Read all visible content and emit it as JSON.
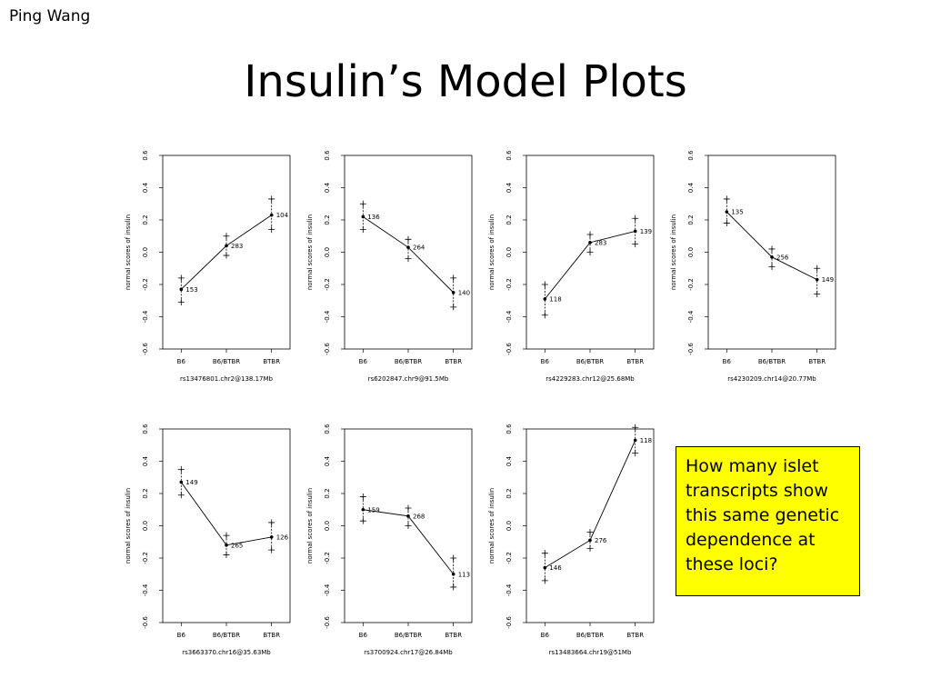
{
  "slide": {
    "author": "Ping Wang",
    "title": "Insulin’s Model Plots",
    "callout": "How many islet transcripts show this same genetic dependence at these loci?"
  },
  "chart_data": [
    {
      "type": "line",
      "categories": [
        "B6",
        "B6/BTBR",
        "BTBR"
      ],
      "values": [
        -0.23,
        0.04,
        0.23
      ],
      "upper": [
        -0.16,
        0.1,
        0.33
      ],
      "lower": [
        -0.31,
        -0.02,
        0.14
      ],
      "counts": [
        "153",
        "283",
        "104"
      ],
      "xlabel": "rs13476801.chr2@138.17Mb",
      "ylabel": "normal scores of insulin",
      "ylim": [
        -0.6,
        0.6
      ],
      "yticks": [
        "-0.6",
        "-0.4",
        "-0.2",
        "0.0",
        "0.2",
        "0.4",
        "0.6"
      ]
    },
    {
      "type": "line",
      "categories": [
        "B6",
        "B6/BTBR",
        "BTBR"
      ],
      "values": [
        0.22,
        0.03,
        -0.25
      ],
      "upper": [
        0.3,
        0.08,
        -0.16
      ],
      "lower": [
        0.14,
        -0.04,
        -0.34
      ],
      "counts": [
        "136",
        "264",
        "140"
      ],
      "xlabel": "rs6202847.chr9@91.5Mb",
      "ylabel": "normal scores of insulin",
      "ylim": [
        -0.6,
        0.6
      ],
      "yticks": [
        "-0.6",
        "-0.4",
        "-0.2",
        "0.0",
        "0.2",
        "0.4",
        "0.6"
      ]
    },
    {
      "type": "line",
      "categories": [
        "B6",
        "B6/BTBR",
        "BTBR"
      ],
      "values": [
        -0.29,
        0.06,
        0.13
      ],
      "upper": [
        -0.2,
        0.11,
        0.21
      ],
      "lower": [
        -0.39,
        0.0,
        0.05
      ],
      "counts": [
        "118",
        "283",
        "139"
      ],
      "xlabel": "rs4229283.chr12@25.68Mb",
      "ylabel": "normal scores of insulin",
      "ylim": [
        -0.6,
        0.6
      ],
      "yticks": [
        "-0.6",
        "-0.4",
        "-0.2",
        "0.0",
        "0.2",
        "0.4",
        "0.6"
      ]
    },
    {
      "type": "line",
      "categories": [
        "B6",
        "B6/BTBR",
        "BTBR"
      ],
      "values": [
        0.25,
        -0.03,
        -0.17
      ],
      "upper": [
        0.33,
        0.02,
        -0.1
      ],
      "lower": [
        0.18,
        -0.09,
        -0.26
      ],
      "counts": [
        "135",
        "256",
        "149"
      ],
      "xlabel": "rs4230209.chr14@20.77Mb",
      "ylabel": "normal scores of insulin",
      "ylim": [
        -0.6,
        0.6
      ],
      "yticks": [
        "-0.6",
        "-0.4",
        "-0.2",
        "0.0",
        "0.2",
        "0.4",
        "0.6"
      ]
    },
    {
      "type": "line",
      "categories": [
        "B6",
        "B6/BTBR",
        "BTBR"
      ],
      "values": [
        0.27,
        -0.12,
        -0.07
      ],
      "upper": [
        0.35,
        -0.06,
        0.02
      ],
      "lower": [
        0.19,
        -0.18,
        -0.15
      ],
      "counts": [
        "149",
        "265",
        "126"
      ],
      "xlabel": "rs3663370.chr16@35.63Mb",
      "ylabel": "normal scores of insulin",
      "ylim": [
        -0.6,
        0.6
      ],
      "yticks": [
        "-0.6",
        "-0.4",
        "-0.2",
        "0.0",
        "0.2",
        "0.4",
        "0.6"
      ]
    },
    {
      "type": "line",
      "categories": [
        "B6",
        "B6/BTBR",
        "BTBR"
      ],
      "values": [
        0.1,
        0.06,
        -0.3
      ],
      "upper": [
        0.18,
        0.11,
        -0.2
      ],
      "lower": [
        0.03,
        0.0,
        -0.38
      ],
      "counts": [
        "159",
        "268",
        "113"
      ],
      "xlabel": "rs3700924.chr17@26.84Mb",
      "ylabel": "normal scores of insulin",
      "ylim": [
        -0.6,
        0.6
      ],
      "yticks": [
        "-0.6",
        "-0.4",
        "-0.2",
        "0.0",
        "0.2",
        "0.4",
        "0.6"
      ]
    },
    {
      "type": "line",
      "categories": [
        "B6",
        "B6/BTBR",
        "BTBR"
      ],
      "values": [
        -0.26,
        -0.09,
        0.53
      ],
      "upper": [
        -0.17,
        -0.04,
        0.61
      ],
      "lower": [
        -0.34,
        -0.14,
        0.45
      ],
      "counts": [
        "146",
        "276",
        "118"
      ],
      "xlabel": "rs13483664.chr19@51Mb",
      "ylabel": "normal scores of insulin",
      "ylim": [
        -0.6,
        0.6
      ],
      "yticks": [
        "-0.6",
        "-0.4",
        "-0.2",
        "0.0",
        "0.2",
        "0.4",
        "0.6"
      ]
    }
  ]
}
